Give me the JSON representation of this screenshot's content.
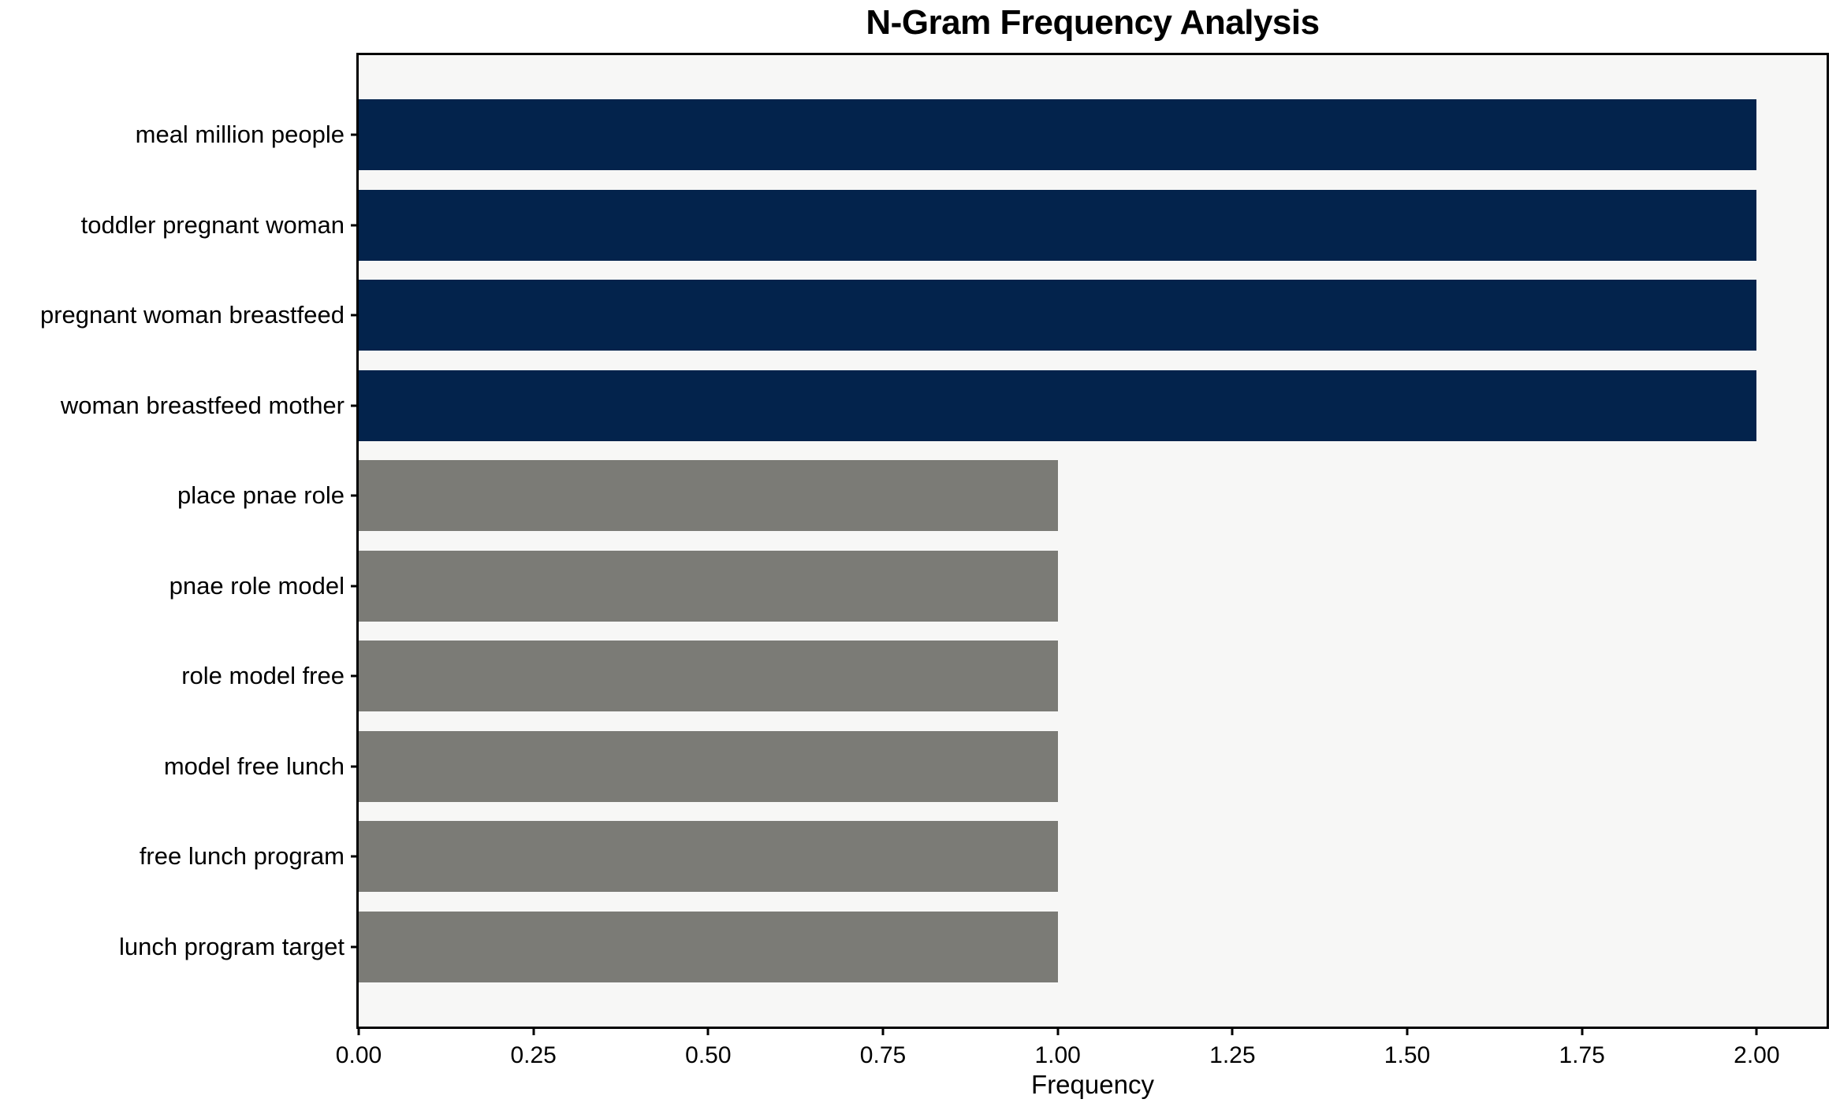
{
  "chart_data": {
    "type": "bar",
    "orientation": "horizontal",
    "title": "N-Gram Frequency Analysis",
    "xlabel": "Frequency",
    "ylabel": "",
    "categories": [
      "meal million people",
      "toddler pregnant woman",
      "pregnant woman breastfeed",
      "woman breastfeed mother",
      "place pnae role",
      "pnae role model",
      "role model free",
      "model free lunch",
      "free lunch program",
      "lunch program target"
    ],
    "values": [
      2,
      2,
      2,
      2,
      1,
      1,
      1,
      1,
      1,
      1
    ],
    "bar_colors": [
      "#03234c",
      "#03234c",
      "#03234c",
      "#03234c",
      "#7b7b76",
      "#7b7b76",
      "#7b7b76",
      "#7b7b76",
      "#7b7b76",
      "#7b7b76"
    ],
    "xlim": [
      0,
      2.1
    ],
    "xticks": [
      0,
      0.25,
      0.5,
      0.75,
      1.0,
      1.25,
      1.5,
      1.75,
      2.0
    ],
    "xtick_labels": [
      "0.00",
      "0.25",
      "0.50",
      "0.75",
      "1.00",
      "1.25",
      "1.50",
      "1.75",
      "2.00"
    ],
    "grid": false,
    "legend_position": "none",
    "plot_background": "#f7f7f6",
    "figure_background": "#ffffff",
    "spine_color": "#000000"
  }
}
